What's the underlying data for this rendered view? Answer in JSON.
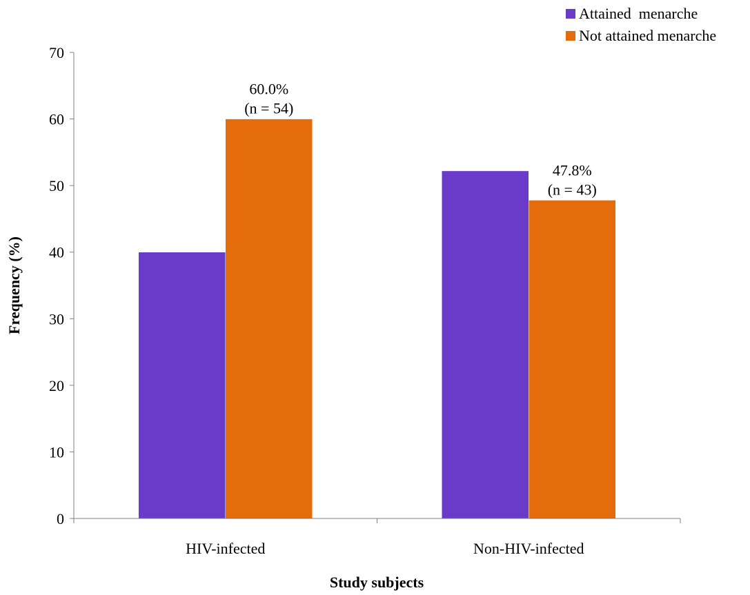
{
  "chart_data": {
    "type": "bar",
    "title": "",
    "xlabel": "Study subjects",
    "ylabel": "Frequency (%)",
    "ylim": [
      0,
      70
    ],
    "yticks": [
      "0",
      "10",
      "20",
      "30",
      "40",
      "50",
      "60",
      "70"
    ],
    "categories": [
      "HIV-infected",
      "Non-HIV-infected"
    ],
    "series": [
      {
        "name": "Attained  menarche",
        "color": "#6a3ac8",
        "values": [
          40.0,
          52.2
        ]
      },
      {
        "name": "Not attained menarche",
        "color": "#e46c0a",
        "values": [
          60.0,
          47.8
        ]
      }
    ],
    "annotations": [
      {
        "series": 1,
        "category": 0,
        "line1": "60.0%",
        "line2": "(n = 54)"
      },
      {
        "series": 1,
        "category": 1,
        "line1": "47.8%",
        "line2": "(n = 43)"
      }
    ],
    "legend_position": "top-right",
    "grid": false
  }
}
